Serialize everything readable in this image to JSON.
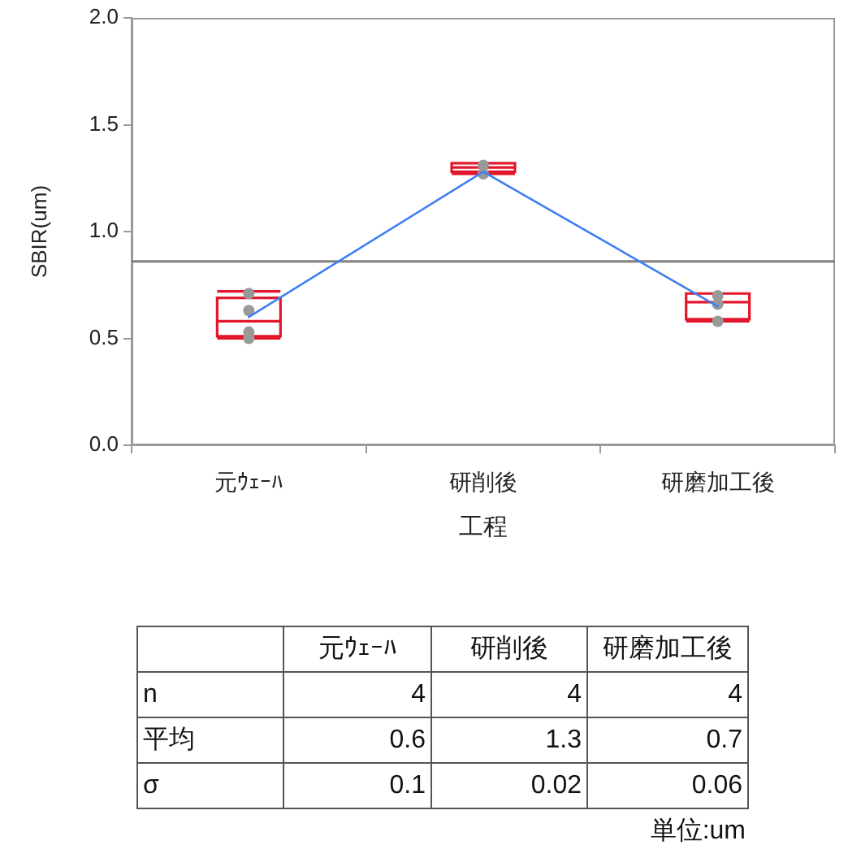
{
  "chart_data": [
    {
      "type": "box",
      "xlabel": "工程",
      "ylabel": "SBIR(um)",
      "categories": [
        "元ｳｪｰﾊ",
        "研削後",
        "研磨加工後"
      ],
      "series": [
        {
          "type": "box",
          "color": "#e3172c",
          "boxes": [
            {
              "low": 0.5,
              "q1": 0.51,
              "median": 0.58,
              "q3": 0.69,
              "high": 0.72
            },
            {
              "low": 1.27,
              "q1": 1.28,
              "median": 1.3,
              "q3": 1.32,
              "high": 1.32
            },
            {
              "low": 0.58,
              "q1": 0.59,
              "median": 0.67,
              "q3": 0.71,
              "high": 0.71
            }
          ]
        },
        {
          "type": "scatter",
          "color": "#999999",
          "marker": "circle",
          "x": [
            "元ｳｪｰﾊ",
            "元ｳｪｰﾊ",
            "元ｳｪｰﾊ",
            "元ｳｪｰﾊ",
            "研削後",
            "研削後",
            "研磨加工後",
            "研磨加工後",
            "研磨加工後"
          ],
          "values": [
            0.71,
            0.63,
            0.53,
            0.5,
            1.31,
            1.27,
            0.7,
            0.66,
            0.58
          ]
        },
        {
          "type": "line",
          "color": "#3f7ff2",
          "marker": "none",
          "values": [
            0.6,
            1.28,
            0.65
          ]
        }
      ],
      "ylim": [
        0,
        2
      ],
      "yticks": [
        {
          "value": 0,
          "label": "0.0"
        },
        {
          "value": 0.5,
          "label": "0.5"
        },
        {
          "value": 1,
          "label": "1.0"
        },
        {
          "value": 1.5,
          "label": "1.5"
        },
        {
          "value": 2,
          "label": "2.0"
        }
      ],
      "ref_lines": [
        {
          "axis": "y",
          "value": 0.86,
          "color": "#808080"
        }
      ]
    },
    {
      "type": "other",
      "categories": [
        "元ｳｪｰﾊ",
        "研削後",
        "研磨加工後"
      ],
      "series": [
        {
          "name": "n",
          "values": [
            4,
            4,
            4
          ]
        },
        {
          "name": "平均",
          "values": [
            0.6,
            1.3,
            0.7
          ]
        },
        {
          "name": "σ",
          "values": [
            0.1,
            0.02,
            0.06
          ]
        }
      ],
      "data_labels": true,
      "annotations": [
        "単位:um"
      ]
    }
  ]
}
